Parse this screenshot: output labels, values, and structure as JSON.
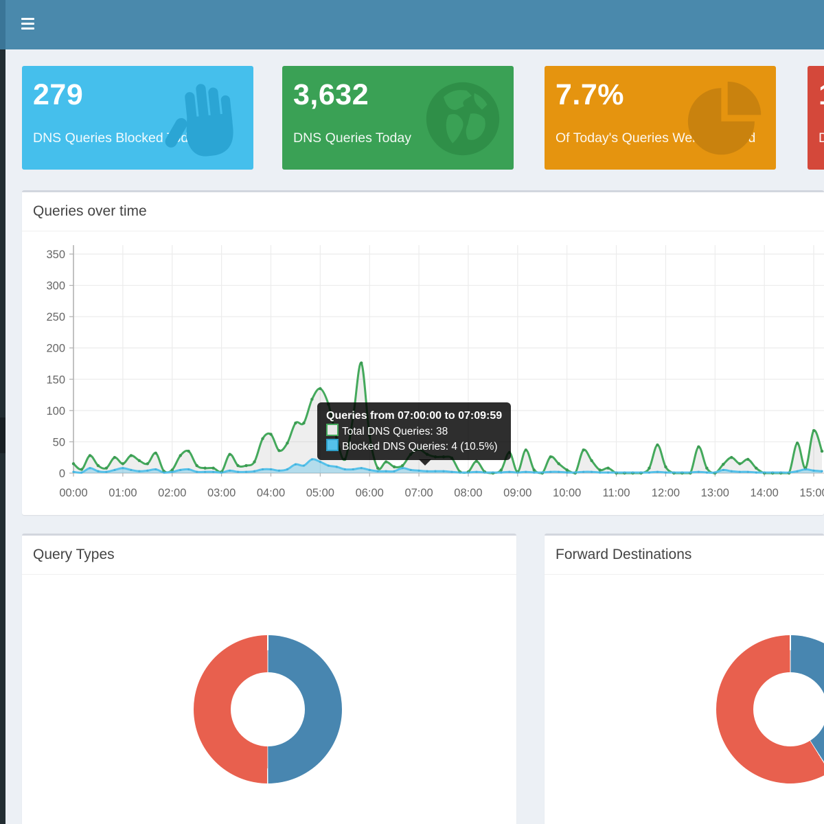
{
  "header": {
    "menu_icon": "hamburger-icon"
  },
  "colors": {
    "navbar_bg": "#4a89ac",
    "navbar_logo_bg": "#3a7597",
    "sidebar_bg": "#222d32",
    "content_bg": "#ecf0f5",
    "panel_border": "#d2d6de",
    "title_text": "#444444",
    "axis_text": "#666666",
    "grid_line": "#ececec",
    "tooltip_bg": "rgba(0,0,0,0.82)"
  },
  "cards": [
    {
      "value": "279",
      "label": "DNS Queries Blocked Today",
      "icon": "hand-icon",
      "bg": "#45bfec",
      "icon_color": "#2ba5d4"
    },
    {
      "value": "3,632",
      "label": "DNS Queries Today",
      "icon": "globe-icon",
      "bg": "#3aa155",
      "icon_color": "#2f8f48"
    },
    {
      "value": "7.7%",
      "label": "Of Today's Queries Were Blocked",
      "icon": "pie-chart-icon",
      "bg": "#e5940f",
      "icon_color": "#c9820e"
    },
    {
      "value": "1",
      "label": "D",
      "icon": "none",
      "bg": "#d4483a",
      "icon_color": "#b93f30"
    }
  ],
  "panels": {
    "queries": {
      "title": "Queries over time"
    },
    "query_types": {
      "title": "Query Types"
    },
    "forward_destinations": {
      "title": "Forward Destinations"
    }
  },
  "tooltip": {
    "title": "Queries from 07:00:00 to 07:09:59",
    "total_line": "Total DNS Queries: 38",
    "blocked_line": "Blocked DNS Queries: 4 (10.5%)"
  },
  "chart_data": [
    {
      "type": "area",
      "title": "Queries over time",
      "x_start": "00:00",
      "x_interval_minutes": 10,
      "x_tick_labels": [
        "00:00",
        "01:00",
        "02:00",
        "03:00",
        "04:00",
        "05:00",
        "06:00",
        "07:00",
        "08:00",
        "09:00",
        "10:00",
        "11:00",
        "12:00",
        "13:00",
        "14:00",
        "15:00"
      ],
      "y_ticks": [
        0,
        50,
        100,
        150,
        200,
        250,
        300,
        350
      ],
      "ylim": [
        0,
        350
      ],
      "grid": true,
      "legend": "hidden",
      "series": [
        {
          "name": "Total DNS Queries",
          "line_color": "#44a95c",
          "dot_color": "#3b9a52",
          "fill_color": "rgba(120,120,120,0.13)",
          "key_fill": "#e8e8e8",
          "values": [
            15,
            6,
            28,
            12,
            8,
            25,
            15,
            28,
            20,
            15,
            32,
            3,
            5,
            28,
            35,
            12,
            8,
            8,
            2,
            30,
            12,
            12,
            18,
            55,
            62,
            36,
            48,
            80,
            80,
            118,
            135,
            110,
            55,
            22,
            90,
            176,
            60,
            8,
            18,
            10,
            12,
            30,
            38,
            30,
            26,
            26,
            24,
            2,
            2,
            19,
            2,
            0,
            5,
            33,
            2,
            37,
            5,
            0,
            26,
            15,
            5,
            0,
            37,
            20,
            5,
            8,
            0,
            0,
            0,
            0,
            8,
            45,
            10,
            0,
            0,
            0,
            42,
            8,
            0,
            14,
            25,
            15,
            22,
            8,
            0,
            0,
            0,
            0,
            48,
            8,
            68,
            35
          ]
        },
        {
          "name": "Blocked DNS Queries",
          "line_color": "#55c1ea",
          "dot_color": "#45b2dc",
          "fill_color": "rgba(85,193,234,0.38)",
          "key_fill": "#55c1ea",
          "key_border": "#2d9fc9",
          "values": [
            2,
            1,
            8,
            3,
            2,
            5,
            8,
            5,
            3,
            4,
            6,
            1,
            2,
            5,
            6,
            2,
            2,
            2,
            1,
            4,
            2,
            2,
            3,
            6,
            6,
            4,
            6,
            14,
            12,
            22,
            18,
            12,
            10,
            6,
            6,
            8,
            5,
            3,
            3,
            3,
            8,
            5,
            4,
            3,
            3,
            3,
            2,
            1,
            1,
            2,
            1,
            1,
            1,
            2,
            1,
            2,
            1,
            1,
            2,
            2,
            1,
            1,
            2,
            2,
            1,
            1,
            1,
            1,
            1,
            1,
            1,
            2,
            1,
            1,
            1,
            1,
            2,
            1,
            1,
            5,
            3,
            2,
            2,
            1,
            1,
            1,
            1,
            1,
            3,
            6,
            4,
            3
          ]
        }
      ]
    },
    {
      "type": "donut",
      "title": "Query Types",
      "slices": [
        {
          "color": "#4886b0",
          "percent": 50
        },
        {
          "color": "#e8604e",
          "percent": 50
        }
      ]
    },
    {
      "type": "donut",
      "title": "Forward Destinations",
      "slices": [
        {
          "color": "#4886b0",
          "percent": 41
        },
        {
          "color": "#e8604e",
          "percent": 59
        }
      ]
    }
  ]
}
